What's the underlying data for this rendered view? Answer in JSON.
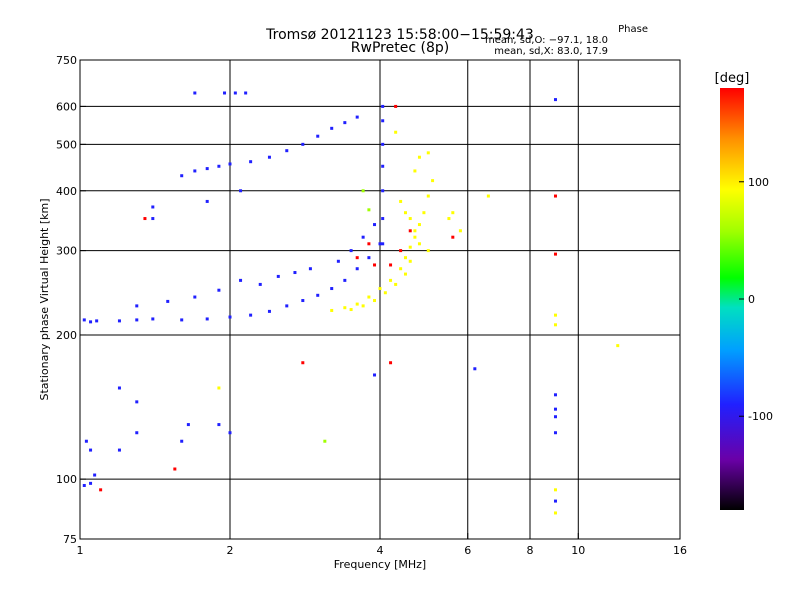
{
  "chart_data": {
    "type": "scatter",
    "title": "Tromsø 20121123 15:58:00−15:59:43",
    "subtitle": "RwPretec (8p)",
    "phase_block": {
      "heading": "Phase",
      "line_o": "mean, sd,O: −97.1, 18.0",
      "line_x": "mean, sd,X:  83.0, 17.9"
    },
    "xlabel": "Frequency [MHz]",
    "ylabel": "Stationary phase Virtual Height [km]",
    "x_scale": "log",
    "y_scale": "log",
    "xlim": [
      1,
      16
    ],
    "ylim": [
      75,
      750
    ],
    "x_ticks": [
      1,
      2,
      4,
      6,
      8,
      10,
      16
    ],
    "y_ticks": [
      75,
      100,
      200,
      300,
      400,
      500,
      600,
      750
    ],
    "grid": true,
    "colorbar": {
      "unit": "[deg]",
      "range": [
        -180,
        180
      ],
      "ticks": [
        100,
        0,
        -100
      ],
      "colors": [
        "#000000",
        "#6a00a8",
        "#2020ff",
        "#00b0ff",
        "#00e0b0",
        "#00ff00",
        "#a0ff00",
        "#ffff00",
        "#ff9000",
        "#ff0000"
      ]
    },
    "series": [
      {
        "values": [
          [
            1.02,
            215
          ],
          [
            1.05,
            213
          ],
          [
            1.08,
            214
          ],
          [
            1.2,
            214
          ],
          [
            1.3,
            215
          ],
          [
            1.4,
            216
          ],
          [
            1.6,
            215
          ],
          [
            1.8,
            216
          ],
          [
            2.0,
            218
          ],
          [
            2.2,
            220
          ],
          [
            2.4,
            224
          ],
          [
            2.6,
            230
          ],
          [
            2.8,
            236
          ],
          [
            3.0,
            242
          ],
          [
            3.2,
            250
          ],
          [
            3.4,
            260
          ],
          [
            3.6,
            275
          ],
          [
            3.8,
            290
          ],
          [
            4.0,
            310
          ],
          [
            1.3,
            230
          ],
          [
            1.5,
            235
          ],
          [
            1.7,
            240
          ],
          [
            1.9,
            248
          ],
          [
            2.1,
            260
          ],
          [
            2.3,
            255
          ],
          [
            2.5,
            265
          ],
          [
            2.7,
            270
          ],
          [
            2.9,
            275
          ],
          [
            3.3,
            285
          ],
          [
            3.5,
            300
          ],
          [
            3.7,
            320
          ],
          [
            3.9,
            340
          ],
          [
            1.6,
            430
          ],
          [
            1.7,
            440
          ],
          [
            1.8,
            445
          ],
          [
            1.9,
            450
          ],
          [
            2.0,
            455
          ],
          [
            2.2,
            460
          ],
          [
            2.4,
            470
          ],
          [
            2.6,
            485
          ],
          [
            2.8,
            500
          ],
          [
            3.0,
            520
          ],
          [
            3.2,
            540
          ],
          [
            3.4,
            555
          ],
          [
            3.6,
            570
          ],
          [
            4.05,
            600
          ],
          [
            4.05,
            560
          ],
          [
            4.05,
            500
          ],
          [
            4.05,
            450
          ],
          [
            4.05,
            400
          ],
          [
            4.05,
            350
          ],
          [
            4.05,
            310
          ],
          [
            1.7,
            640
          ],
          [
            1.95,
            640
          ],
          [
            2.05,
            640
          ],
          [
            2.15,
            640
          ],
          [
            1.4,
            370
          ],
          [
            1.8,
            380
          ],
          [
            2.1,
            400
          ],
          [
            1.4,
            350
          ],
          [
            1.03,
            120
          ],
          [
            1.05,
            115
          ],
          [
            1.2,
            115
          ],
          [
            1.3,
            125
          ],
          [
            1.6,
            120
          ],
          [
            1.65,
            130
          ],
          [
            1.9,
            130
          ],
          [
            2.0,
            125
          ],
          [
            1.2,
            155
          ],
          [
            1.3,
            145
          ],
          [
            1.02,
            97
          ],
          [
            1.05,
            98
          ],
          [
            1.07,
            102
          ],
          [
            3.9,
            165
          ],
          [
            9.0,
            150
          ],
          [
            9.0,
            140
          ],
          [
            9.0,
            135
          ],
          [
            9.0,
            125
          ],
          [
            9.0,
            90
          ],
          [
            9.0,
            620
          ],
          [
            6.2,
            170
          ]
        ],
        "phase": -100
      },
      {
        "values": [
          [
            3.2,
            225
          ],
          [
            3.4,
            228
          ],
          [
            3.6,
            232
          ],
          [
            3.8,
            240
          ],
          [
            4.0,
            250
          ],
          [
            4.2,
            260
          ],
          [
            4.4,
            275
          ],
          [
            4.5,
            290
          ],
          [
            4.6,
            305
          ],
          [
            4.7,
            320
          ],
          [
            4.8,
            340
          ],
          [
            4.9,
            360
          ],
          [
            5.0,
            390
          ],
          [
            5.1,
            420
          ],
          [
            3.5,
            226
          ],
          [
            3.7,
            230
          ],
          [
            3.9,
            236
          ],
          [
            4.1,
            245
          ],
          [
            4.3,
            255
          ],
          [
            4.5,
            268
          ],
          [
            4.6,
            285
          ],
          [
            4.4,
            380
          ],
          [
            4.5,
            360
          ],
          [
            4.6,
            350
          ],
          [
            4.7,
            330
          ],
          [
            4.8,
            310
          ],
          [
            5.0,
            300
          ],
          [
            5.5,
            350
          ],
          [
            5.6,
            360
          ],
          [
            5.8,
            330
          ],
          [
            6.6,
            390
          ],
          [
            4.7,
            440
          ],
          [
            4.8,
            470
          ],
          [
            5.0,
            480
          ],
          [
            4.3,
            530
          ],
          [
            9.0,
            210
          ],
          [
            9.0,
            220
          ],
          [
            9.0,
            85
          ],
          [
            9.0,
            95
          ],
          [
            12.0,
            190
          ],
          [
            1.9,
            155
          ]
        ],
        "phase": 110
      },
      {
        "values": [
          [
            4.2,
            280
          ],
          [
            4.4,
            300
          ],
          [
            4.6,
            330
          ],
          [
            3.6,
            290
          ],
          [
            3.8,
            310
          ],
          [
            3.9,
            280
          ],
          [
            1.1,
            95
          ],
          [
            1.55,
            105
          ],
          [
            2.8,
            175
          ],
          [
            4.2,
            175
          ],
          [
            9.0,
            295
          ],
          [
            9.0,
            390
          ],
          [
            4.3,
            600
          ],
          [
            5.6,
            320
          ],
          [
            1.35,
            350
          ]
        ],
        "phase": 160
      },
      {
        "values": [
          [
            3.1,
            120
          ],
          [
            3.8,
            365
          ],
          [
            3.7,
            400
          ]
        ],
        "phase": 40
      }
    ]
  }
}
